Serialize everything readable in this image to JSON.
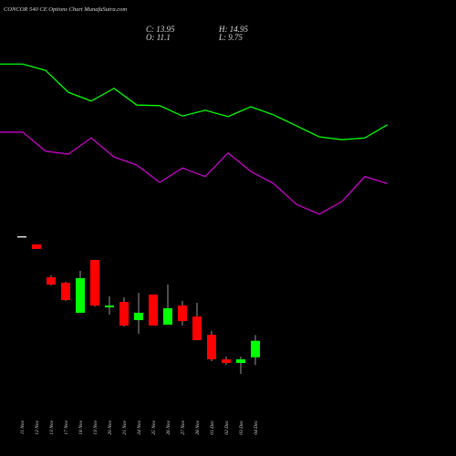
{
  "chart_data": [
    {
      "type": "candlestick",
      "title": "CONCOR 540 CE Options Chart MunafaSutra.com",
      "x": [
        "11 Nov",
        "12 Nov",
        "13 Nov",
        "17 Nov",
        "18 Nov",
        "19 Nov",
        "20 Nov",
        "21 Nov",
        "24 Nov",
        "25 Nov",
        "26 Nov",
        "27 Nov",
        "28 Nov",
        "01 Dec",
        "02 Dec",
        "03 Dec",
        "04 Dec"
      ],
      "open": [
        32.08,
        30.66,
        24.97,
        24.02,
        18.81,
        27.97,
        19.75,
        20.7,
        17.54,
        21.97,
        16.75,
        20.07,
        18.17,
        15.01,
        10.75,
        10.12,
        11.1
      ],
      "high": [
        32.08,
        30.66,
        25.28,
        24.18,
        26.07,
        27.97,
        21.65,
        21.49,
        22.28,
        21.97,
        23.7,
        20.86,
        20.54,
        15.65,
        11.22,
        11.22,
        14.95
      ],
      "low": [
        32.08,
        29.87,
        23.54,
        20.86,
        18.81,
        19.91,
        18.49,
        16.44,
        15.17,
        16.59,
        16.75,
        16.59,
        14.07,
        10.43,
        9.8,
        8.22,
        9.75
      ],
      "close": [
        32.08,
        29.87,
        23.7,
        21.02,
        24.81,
        20.07,
        20.07,
        16.59,
        18.81,
        16.59,
        19.6,
        17.38,
        14.07,
        10.75,
        10.12,
        10.75,
        13.95
      ],
      "up_color": "#00ff00",
      "down_color": "#ff0000",
      "flat_color": "#dddddd",
      "readout_labels": {
        "close": "C:",
        "open": "O:",
        "high": "H:",
        "low": "L:"
      },
      "ylim": [
        -6,
        73
      ]
    },
    {
      "type": "line",
      "categories": [
        null,
        null,
        null,
        null,
        null,
        null,
        null,
        null,
        null,
        null,
        null,
        null,
        null,
        null,
        null,
        null,
        null,
        null
      ],
      "series": [
        {
          "color": "#00ff00",
          "values": [
            61.9,
            61.9,
            60.8,
            57.0,
            55.5,
            57.7,
            54.8,
            54.7,
            52.9,
            53.9,
            52.8,
            54.5,
            53.1,
            51.2,
            49.3,
            48.8,
            49.1,
            51.4
          ]
        },
        {
          "color": "#cc00cc",
          "values": [
            50.1,
            50.1,
            46.8,
            46.3,
            49.1,
            45.8,
            44.4,
            41.4,
            43.9,
            42.4,
            46.5,
            43.3,
            41.2,
            37.6,
            35.9,
            38.1,
            42.4,
            41.2
          ]
        }
      ],
      "ylim": [
        -6,
        73
      ]
    }
  ]
}
